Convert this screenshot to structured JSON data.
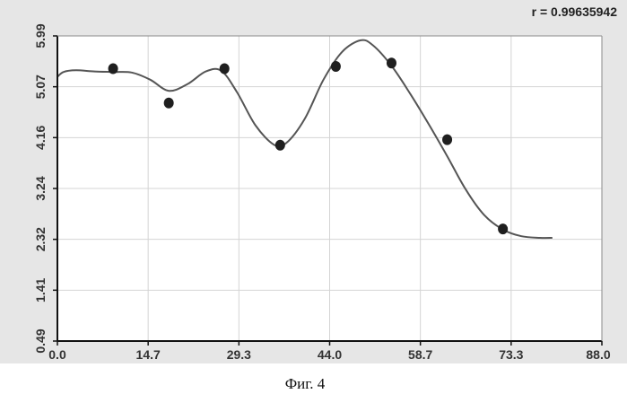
{
  "chart_data": {
    "type": "scatter",
    "annotation": "r = 0.99635942",
    "caption": "Фиг. 4",
    "xlim": [
      0,
      88
    ],
    "ylim": [
      0.49,
      5.99
    ],
    "x_ticks": [
      "0.0",
      "14.7",
      "29.3",
      "44.0",
      "58.7",
      "73.3",
      "88.0"
    ],
    "y_ticks": [
      "0.49",
      "1.41",
      "2.32",
      "3.24",
      "4.16",
      "5.07",
      "5.99"
    ],
    "grid": true,
    "points": [
      {
        "x": 9.0,
        "y": 5.4
      },
      {
        "x": 18.0,
        "y": 4.78
      },
      {
        "x": 27.0,
        "y": 5.4
      },
      {
        "x": 36.0,
        "y": 4.02
      },
      {
        "x": 45.0,
        "y": 5.44
      },
      {
        "x": 54.0,
        "y": 5.5
      },
      {
        "x": 63.0,
        "y": 4.12
      },
      {
        "x": 72.0,
        "y": 2.51
      }
    ],
    "fit_curve": [
      {
        "x": 0.0,
        "y": 5.25
      },
      {
        "x": 1.0,
        "y": 5.34
      },
      {
        "x": 3.0,
        "y": 5.37
      },
      {
        "x": 6.0,
        "y": 5.35
      },
      {
        "x": 9.0,
        "y": 5.34
      },
      {
        "x": 12.0,
        "y": 5.33
      },
      {
        "x": 15.0,
        "y": 5.2
      },
      {
        "x": 18.0,
        "y": 5.0
      },
      {
        "x": 21.0,
        "y": 5.12
      },
      {
        "x": 24.0,
        "y": 5.35
      },
      {
        "x": 26.5,
        "y": 5.36
      },
      {
        "x": 29.0,
        "y": 4.98
      },
      {
        "x": 32.0,
        "y": 4.38
      },
      {
        "x": 35.0,
        "y": 4.03
      },
      {
        "x": 37.0,
        "y": 4.06
      },
      {
        "x": 40.0,
        "y": 4.5
      },
      {
        "x": 43.0,
        "y": 5.2
      },
      {
        "x": 46.0,
        "y": 5.7
      },
      {
        "x": 49.0,
        "y": 5.91
      },
      {
        "x": 51.0,
        "y": 5.82
      },
      {
        "x": 54.0,
        "y": 5.45
      },
      {
        "x": 57.0,
        "y": 4.95
      },
      {
        "x": 60.0,
        "y": 4.4
      },
      {
        "x": 63.0,
        "y": 3.82
      },
      {
        "x": 66.0,
        "y": 3.22
      },
      {
        "x": 69.0,
        "y": 2.76
      },
      {
        "x": 72.0,
        "y": 2.5
      },
      {
        "x": 75.0,
        "y": 2.38
      },
      {
        "x": 78.0,
        "y": 2.35
      },
      {
        "x": 80.0,
        "y": 2.35
      }
    ]
  },
  "colors": {
    "plot_bg": "#ffffff",
    "outer_bg": "#e6e6e6",
    "grid": "#d4d4d4",
    "axis": "#111111",
    "curve": "#555555",
    "point": "#1f1f1f"
  }
}
